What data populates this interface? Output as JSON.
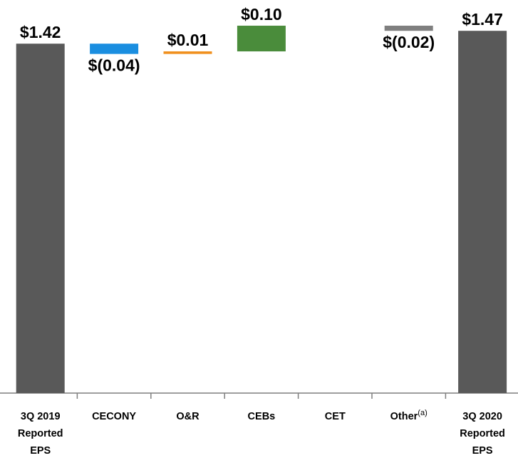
{
  "chart_data": {
    "type": "waterfall",
    "categories": [
      [
        "3Q 2019",
        "Reported",
        "EPS"
      ],
      [
        "CECONY"
      ],
      [
        "O&R"
      ],
      [
        "CEBs"
      ],
      [
        "CET"
      ],
      [
        {
          "label": "Other",
          "superscript": "(a)"
        }
      ],
      [
        "3Q 2020",
        "Reported",
        "EPS"
      ]
    ],
    "values": [
      1.42,
      -0.04,
      0.01,
      0.1,
      0,
      -0.02,
      1.47
    ],
    "value_labels": [
      "$1.42",
      "$(0.04)",
      "$0.01",
      "$0.10",
      null,
      "$(0.02)",
      "$1.47"
    ],
    "is_total": [
      true,
      false,
      false,
      false,
      false,
      false,
      true
    ],
    "colors": [
      "#595959",
      "#1a8ee0",
      "#f0901e",
      "#4a8c3b",
      "#7f7f7f",
      "#7f7f7f",
      "#595959"
    ],
    "ylim": [
      0.06,
      1.59
    ]
  }
}
